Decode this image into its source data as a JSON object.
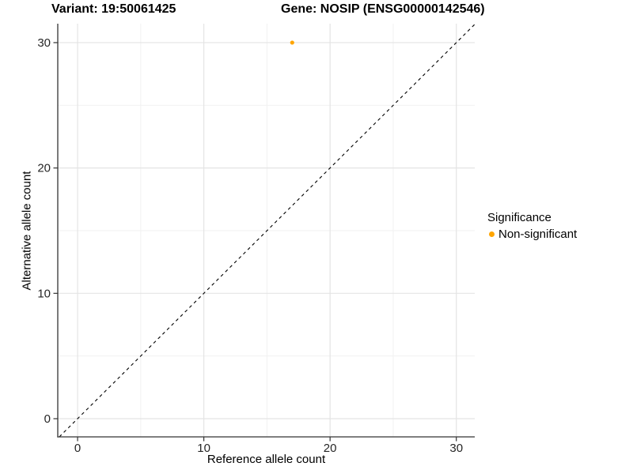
{
  "figure": {
    "title_left": "Variant: 19:50061425",
    "title_right": "Gene: NOSIP (ENSG00000142546)"
  },
  "chart_data": {
    "type": "scatter",
    "title": "Variant: 19:50061425",
    "title_right": "Gene: NOSIP (ENSG00000142546)",
    "xlabel": "Reference allele count",
    "ylabel": "Alternative allele count",
    "xlim": [
      -1.57,
      31.46
    ],
    "ylim": [
      -1.45,
      31.51
    ],
    "x_major_ticks": [
      0,
      10,
      20,
      30
    ],
    "y_major_ticks": [
      0,
      10,
      20,
      30
    ],
    "x_minor_ticks": [
      5,
      15,
      25
    ],
    "y_minor_ticks": [
      5,
      15,
      25
    ],
    "grid": "major+minor",
    "legend_position": "right",
    "series": [
      {
        "name": "Non-significant",
        "color": "#FFA500",
        "marker": "circle",
        "points": [
          [
            17,
            30
          ]
        ]
      }
    ],
    "reference_line": {
      "kind": "identity y=x",
      "style": "dashed",
      "color": "#000000"
    }
  },
  "legend": {
    "title": "Significance",
    "entries": [
      {
        "label": "Non-significant",
        "color": "#FFA500",
        "marker": "circle"
      }
    ]
  },
  "colors": {
    "background": "#FFFFFF",
    "axis_line": "#333333",
    "tick_mark": "#333333",
    "tick_label": "#262626",
    "grid_major": "#E4E4E4",
    "grid_minor": "#F1F1F1",
    "point": "#FFA500",
    "reference_line": "#000000"
  }
}
